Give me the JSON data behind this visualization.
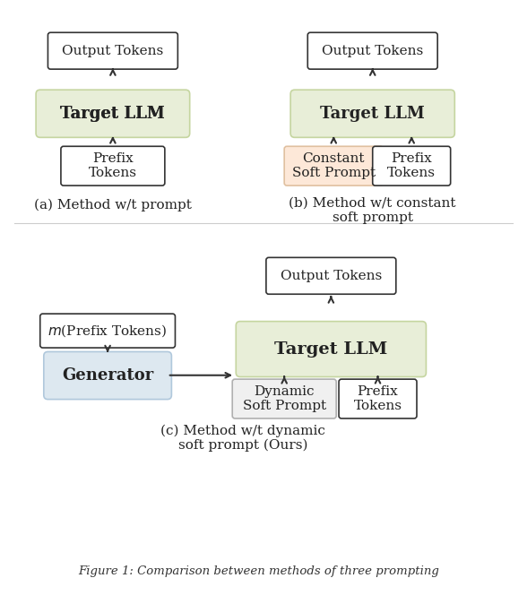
{
  "bg_color": "#ffffff",
  "llm_fill": "#e8eed8",
  "llm_stroke": "#c5d5a0",
  "generator_fill": "#dde8f0",
  "generator_stroke": "#b0c8dc",
  "constant_sp_fill": "#fde8d8",
  "constant_sp_stroke": "#e0c0a0",
  "dynamic_sp_fill": "#f0f0f0",
  "dynamic_sp_stroke": "#b0b0b0",
  "white_fill": "#ffffff",
  "white_stroke": "#333333",
  "caption_a": "(a) Method w/t prompt",
  "caption_b": "(b) Method w/t constant\nsoft prompt",
  "caption_c": "(c) Method w/t dynamic\nsoft prompt (Ours)",
  "fig_caption": "Figure 1: Comparison between methods of three prompting",
  "font_size_label": 11,
  "font_size_bold": 13,
  "font_size_caption": 11,
  "arrow_color": "#333333"
}
